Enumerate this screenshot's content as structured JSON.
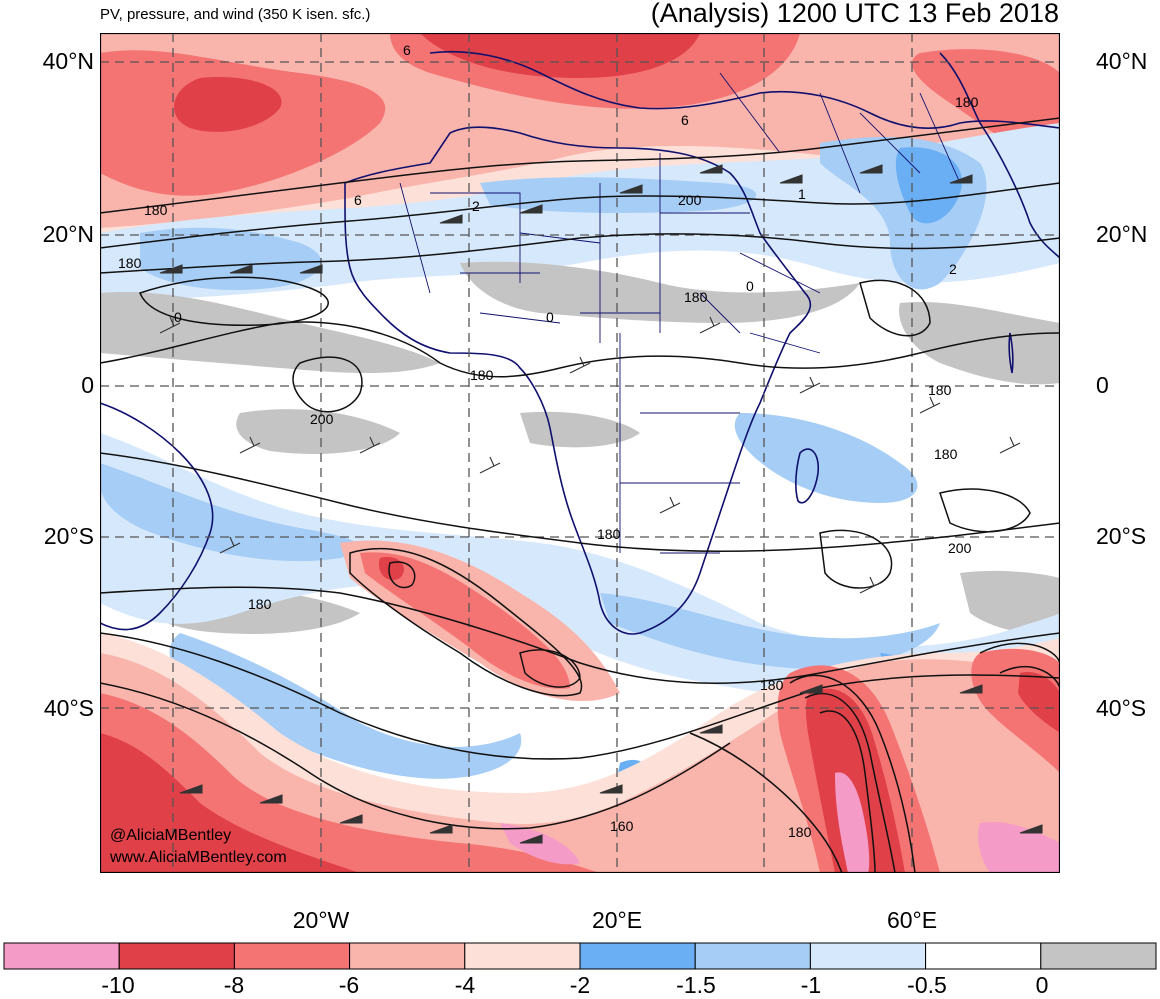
{
  "header": {
    "subtitle": "PV, pressure, and wind (350 K isen. sfc.)",
    "title": "(Analysis) 1200 UTC 13 Feb 2018"
  },
  "lat_labels": [
    "40°N",
    "20°N",
    "0",
    "20°S",
    "40°S"
  ],
  "lon_labels": [
    "20°W",
    "20°E",
    "60°E"
  ],
  "colorbar": {
    "labels": [
      "-10",
      "-8",
      "-6",
      "-4",
      "-2",
      "-1.5",
      "-1",
      "-0.5",
      "0"
    ],
    "colors": [
      "#f59bc8",
      "#e04048",
      "#f47474",
      "#f9b4ac",
      "#fde0d8",
      "#6aaef4",
      "#a6cdf6",
      "#d6e8fb",
      "#ffffff",
      "#c4c4c4"
    ]
  },
  "contour_labels": [
    "6",
    "6",
    "6",
    "2",
    "1",
    "0",
    "0",
    "0",
    "2",
    "180",
    "180",
    "180",
    "180",
    "180",
    "180",
    "180",
    "180",
    "180",
    "180",
    "160",
    "200",
    "200",
    "200",
    "180"
  ],
  "credits": {
    "twitter": "@AliciaMBentley",
    "website": "www.AliciaMBentley.com"
  }
}
